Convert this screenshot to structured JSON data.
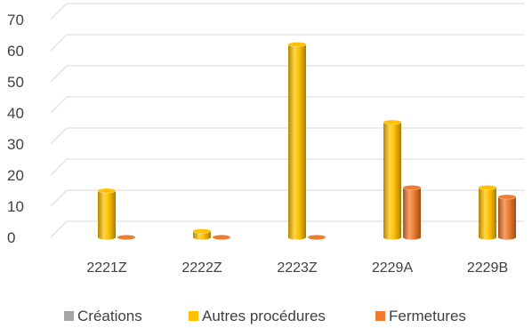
{
  "chart_data": {
    "type": "bar",
    "categories": [
      "2221Z",
      "2222Z",
      "2223Z",
      "2229A",
      "2229B"
    ],
    "series": [
      {
        "name": "Créations",
        "values": [
          0,
          0,
          0,
          0,
          0
        ],
        "color": "#a5a5a5"
      },
      {
        "name": "Autres procédures",
        "values": [
          15,
          2,
          62,
          37,
          16
        ],
        "color": "#ffc000"
      },
      {
        "name": "Fermetures",
        "values": [
          0,
          0,
          0,
          16,
          13
        ],
        "color": "#ed7d31"
      }
    ],
    "yticks": [
      0,
      10,
      20,
      30,
      40,
      50,
      60,
      70
    ],
    "ylim": [
      0,
      70
    ],
    "grid": true,
    "legend_position": "bottom",
    "style": "3d-cylinder"
  }
}
